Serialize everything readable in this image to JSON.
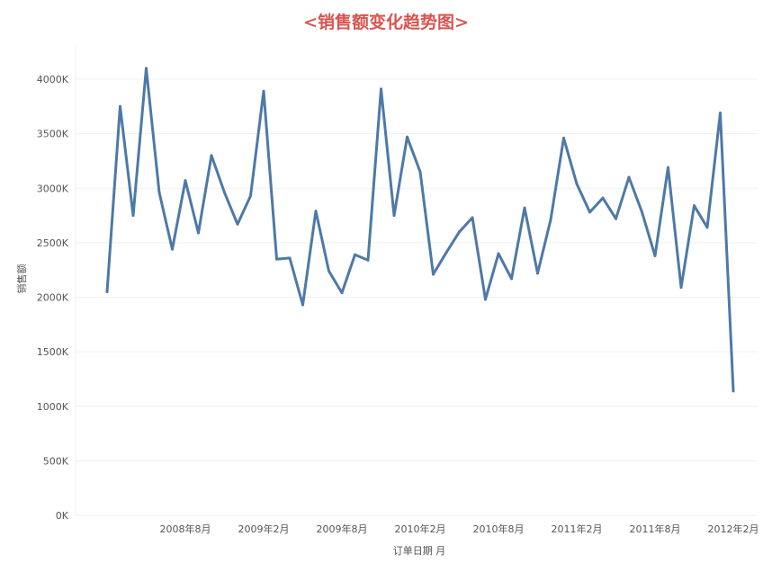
{
  "chart_data": {
    "type": "line",
    "title": "<销售额变化趋势图>",
    "xlabel": "订单日期 月",
    "ylabel": "销售额",
    "ylim": [
      0,
      4300000
    ],
    "y_ticks": [
      {
        "value": 0,
        "label": "0K"
      },
      {
        "value": 500000,
        "label": "500K"
      },
      {
        "value": 1000000,
        "label": "1000K"
      },
      {
        "value": 1500000,
        "label": "1500K"
      },
      {
        "value": 2000000,
        "label": "2000K"
      },
      {
        "value": 2500000,
        "label": "2500K"
      },
      {
        "value": 3000000,
        "label": "3000K"
      },
      {
        "value": 3500000,
        "label": "3500K"
      },
      {
        "value": 4000000,
        "label": "4000K"
      }
    ],
    "x_ticks": [
      {
        "value": "2008-08",
        "label": "2008年8月"
      },
      {
        "value": "2009-02",
        "label": "2009年2月"
      },
      {
        "value": "2009-08",
        "label": "2009年8月"
      },
      {
        "value": "2010-02",
        "label": "2010年2月"
      },
      {
        "value": "2010-08",
        "label": "2010年8月"
      },
      {
        "value": "2011-02",
        "label": "2011年2月"
      },
      {
        "value": "2011-08",
        "label": "2011年8月"
      },
      {
        "value": "2012-02",
        "label": "2012年2月"
      }
    ],
    "grid": true,
    "color": "#4e79a7",
    "series": [
      {
        "x": [
          "2008-02",
          "2008-03",
          "2008-04",
          "2008-05",
          "2008-06",
          "2008-07",
          "2008-08",
          "2008-09",
          "2008-10",
          "2008-11",
          "2008-12",
          "2009-01",
          "2009-02",
          "2009-03",
          "2009-04",
          "2009-05",
          "2009-06",
          "2009-07",
          "2009-08",
          "2009-09",
          "2009-10",
          "2009-11",
          "2009-12",
          "2010-01",
          "2010-02",
          "2010-03",
          "2010-04",
          "2010-05",
          "2010-06",
          "2010-07",
          "2010-08",
          "2010-09",
          "2010-10",
          "2010-11",
          "2010-12",
          "2011-01",
          "2011-02",
          "2011-03",
          "2011-04",
          "2011-05",
          "2011-06",
          "2011-07",
          "2011-08",
          "2011-09",
          "2011-10",
          "2011-11",
          "2011-12",
          "2012-01",
          "2012-02",
          "2012-03"
        ],
        "values": [
          2050000,
          3750000,
          2750000,
          4100000,
          2960000,
          2440000,
          3070000,
          2590000,
          3300000,
          2960000,
          2670000,
          2930000,
          3890000,
          2350000,
          2360000,
          1930000,
          2790000,
          2240000,
          2040000,
          2390000,
          2340000,
          3910000,
          2750000,
          3470000,
          3150000,
          2210000,
          2410000,
          2600000,
          2730000,
          1980000,
          2400000,
          2170000,
          2820000,
          2220000,
          2710000,
          3460000,
          3040000,
          2780000,
          2910000,
          2720000,
          3100000,
          2780000,
          2380000,
          3190000,
          2090000,
          2840000,
          2640000,
          3690000,
          1140000,
          null
        ]
      }
    ]
  }
}
